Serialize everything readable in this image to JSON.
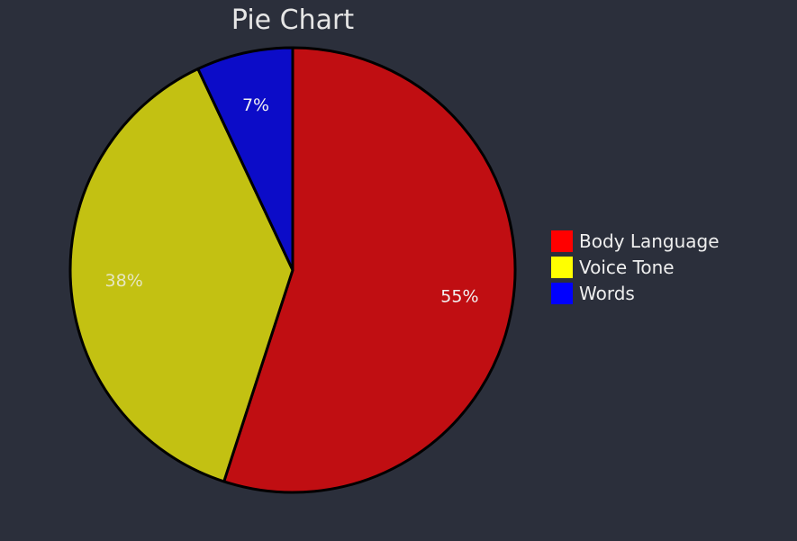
{
  "chart_data": {
    "type": "pie",
    "title": "Pie Chart",
    "labels": [
      "Body Language",
      "Voice Tone",
      "Words"
    ],
    "values": [
      55,
      38,
      7
    ],
    "value_labels": [
      "55%",
      "38%",
      "7%"
    ],
    "slice_colors": [
      "#c00e12",
      "#c3c112",
      "#0c0cc8"
    ],
    "legend_colors": [
      "#ff0000",
      "#ffff00",
      "#0000ff"
    ],
    "label_colors": [
      "#f2f2f2",
      "#e6e6c0",
      "#f2f2f2"
    ],
    "legend_position": "right",
    "start_angle": "top",
    "direction": "clockwise"
  }
}
